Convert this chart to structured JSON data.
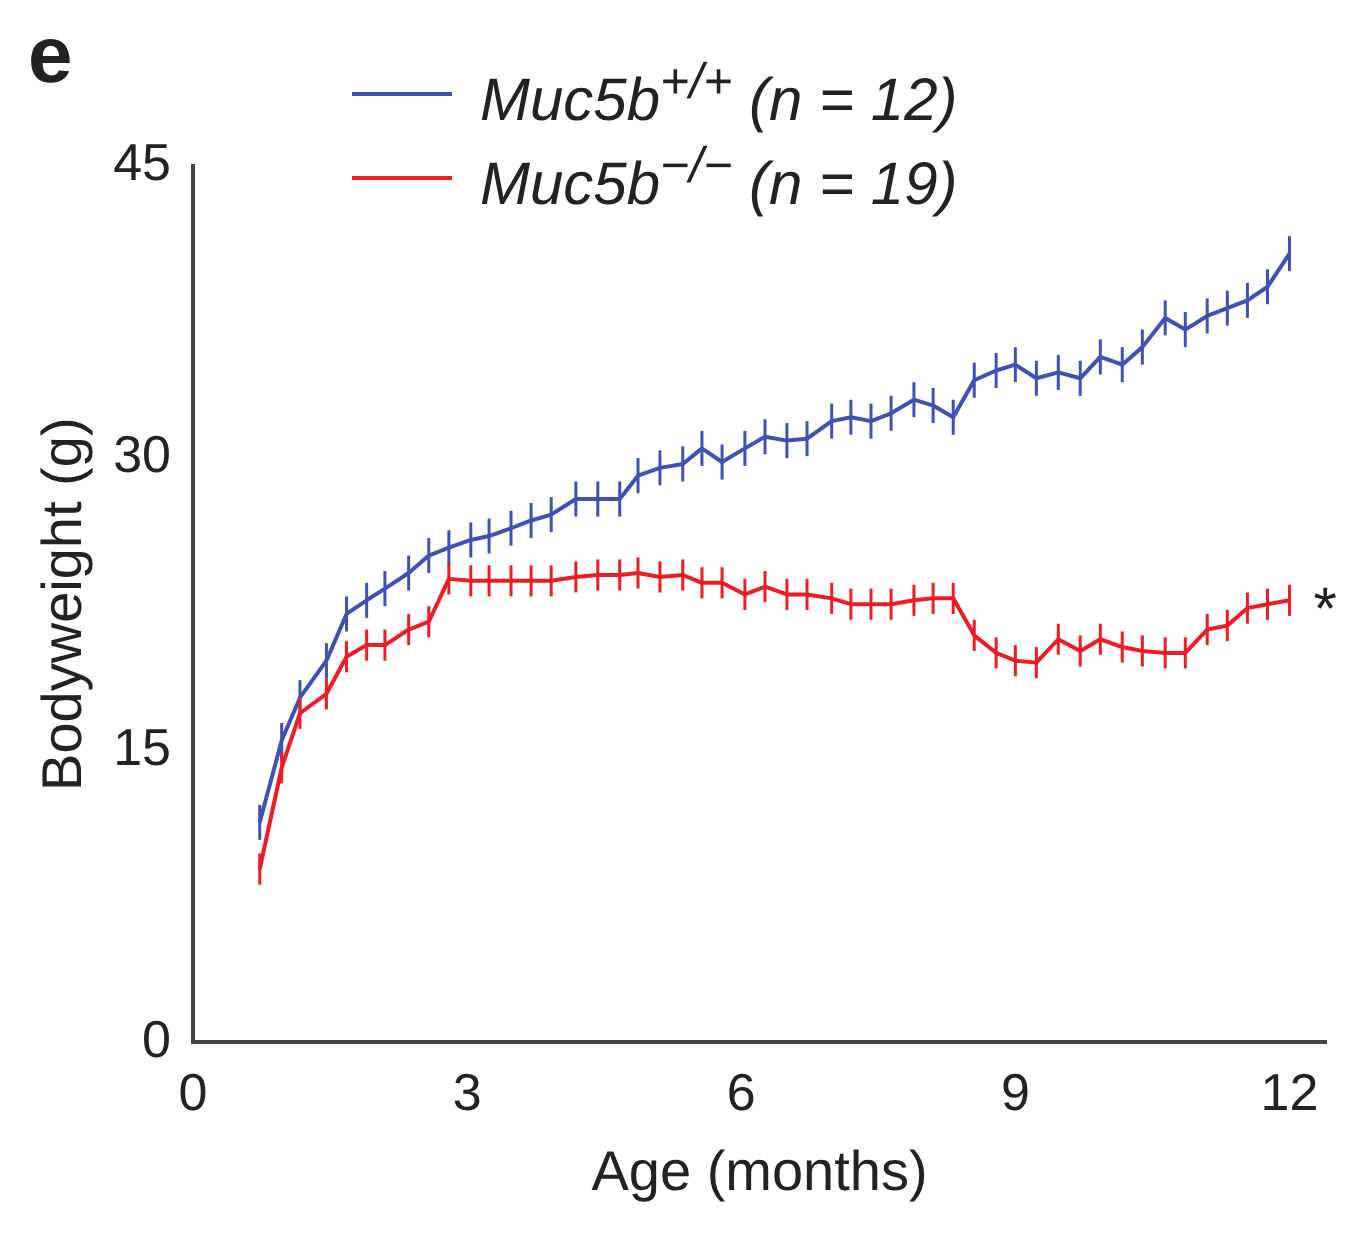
{
  "chart_data": {
    "type": "line",
    "xlabel": "Age (months)",
    "ylabel": "Bodyweight (g)",
    "xlim": [
      0,
      12.4
    ],
    "xticks": [
      0,
      3,
      6,
      9,
      12
    ],
    "ylim": [
      0,
      45
    ],
    "yticks": [
      0,
      15,
      30,
      45
    ],
    "grid": false,
    "legend": "top left",
    "marker": "none",
    "line_style": "solid",
    "x": [
      0.73,
      0.97,
      1.17,
      1.46,
      1.68,
      1.9,
      2.1,
      2.36,
      2.58,
      2.8,
      3.04,
      3.24,
      3.48,
      3.7,
      3.92,
      4.19,
      4.43,
      4.67,
      4.87,
      5.11,
      5.36,
      5.57,
      5.79,
      6.04,
      6.26,
      6.5,
      6.72,
      6.99,
      7.2,
      7.42,
      7.64,
      7.89,
      8.1,
      8.32,
      8.55,
      8.79,
      9.0,
      9.23,
      9.47,
      9.71,
      9.93,
      10.17,
      10.39,
      10.64,
      10.86,
      11.1,
      11.32,
      11.54,
      11.76,
      12.0
    ],
    "series": [
      {
        "name": "Muc5b$^{+/+}$ (n = 12)",
        "color": "#3f51b5",
        "values": [
          11.3,
          15.5,
          17.7,
          19.6,
          22.0,
          22.7,
          23.3,
          24.1,
          25.0,
          25.4,
          25.8,
          26.0,
          26.4,
          26.8,
          27.1,
          27.9,
          27.9,
          27.9,
          29.1,
          29.5,
          29.7,
          30.5,
          29.8,
          30.5,
          31.1,
          30.9,
          31.0,
          31.9,
          32.1,
          31.9,
          32.3,
          33.0,
          32.7,
          32.1,
          34.0,
          34.5,
          34.8,
          34.1,
          34.4,
          34.1,
          35.2,
          34.8,
          35.7,
          37.2,
          36.6,
          37.3,
          37.7,
          38.1,
          38.8,
          40.5
        ],
        "errors": [
          0.9,
          0.9,
          0.9,
          0.9,
          0.9,
          0.9,
          0.9,
          0.9,
          0.9,
          0.9,
          0.9,
          0.9,
          0.9,
          0.9,
          0.9,
          0.9,
          0.9,
          0.9,
          0.9,
          0.9,
          0.9,
          0.9,
          0.9,
          0.9,
          0.9,
          0.9,
          0.9,
          0.9,
          0.9,
          0.9,
          0.9,
          0.9,
          0.9,
          0.9,
          0.9,
          0.9,
          0.9,
          0.9,
          0.9,
          0.9,
          0.9,
          0.9,
          0.9,
          0.9,
          0.9,
          0.9,
          0.9,
          0.9,
          0.9,
          0.9
        ]
      },
      {
        "name": "Muc5b$^{−/−}$ (n = 19)",
        "color": "#ee1c25",
        "values": [
          8.9,
          14.1,
          16.9,
          17.9,
          19.8,
          20.4,
          20.4,
          21.2,
          21.6,
          23.8,
          23.7,
          23.7,
          23.7,
          23.7,
          23.7,
          23.9,
          24.0,
          24.0,
          24.1,
          23.9,
          24.0,
          23.6,
          23.6,
          23.0,
          23.4,
          23.0,
          23.0,
          22.8,
          22.5,
          22.5,
          22.5,
          22.7,
          22.8,
          22.8,
          20.9,
          20.0,
          19.6,
          19.5,
          20.7,
          20.1,
          20.7,
          20.3,
          20.1,
          20.0,
          20.0,
          21.2,
          21.4,
          22.3,
          22.5,
          22.7
        ],
        "errors": [
          0.8,
          0.8,
          0.8,
          0.8,
          0.8,
          0.8,
          0.8,
          0.8,
          0.8,
          0.8,
          0.8,
          0.8,
          0.8,
          0.8,
          0.8,
          0.8,
          0.8,
          0.8,
          0.8,
          0.8,
          0.8,
          0.8,
          0.8,
          0.8,
          0.8,
          0.8,
          0.8,
          0.8,
          0.8,
          0.8,
          0.8,
          0.8,
          0.8,
          0.8,
          0.8,
          0.8,
          0.8,
          0.8,
          0.8,
          0.8,
          0.8,
          0.8,
          0.8,
          0.8,
          0.8,
          0.8,
          0.8,
          0.8,
          0.8,
          0.8
        ]
      }
    ],
    "annotations": [
      "e",
      {
        "text": "*",
        "x": 12,
        "y": 22.7
      }
    ]
  }
}
